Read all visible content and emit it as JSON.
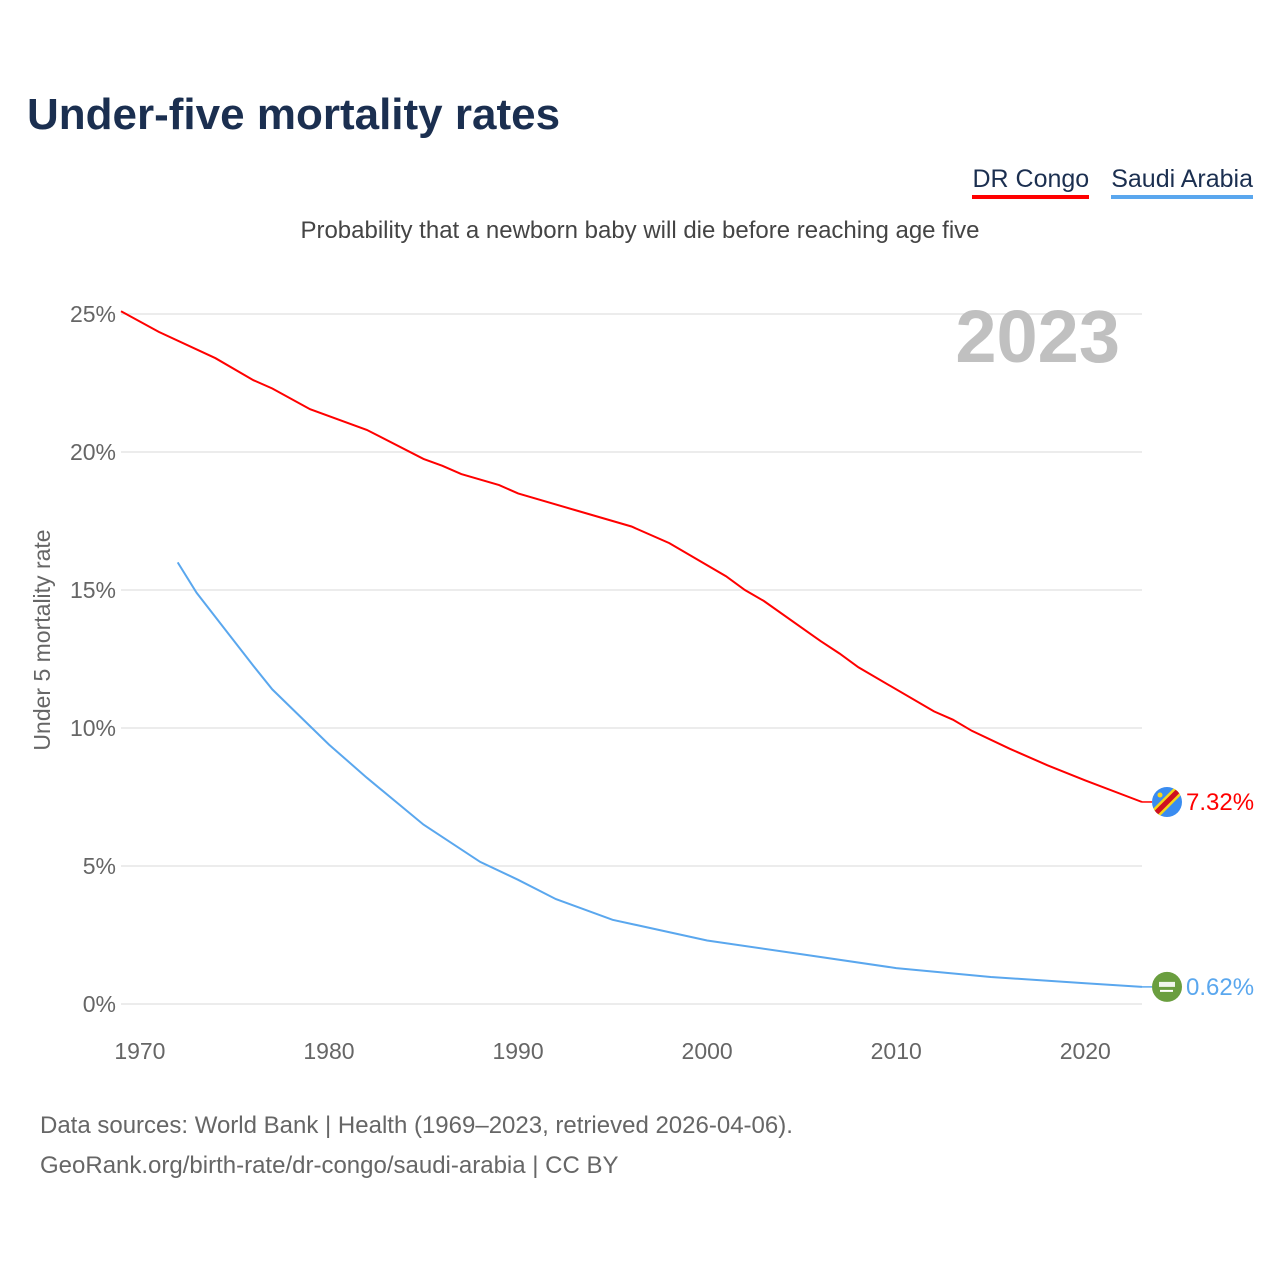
{
  "title": "Under-five mortality rates",
  "subtitle": "Probability that a newborn baby will die before reaching age five",
  "footer": {
    "line1": "Data sources: World Bank | Health (1969–2023, retrieved 2026-04-06).",
    "line2": "GeoRank.org/birth-rate/dr-congo/saudi-arabia | CC BY"
  },
  "chart_data": {
    "type": "line",
    "title": "Under-five mortality rates",
    "xlabel": "",
    "ylabel": "Under 5 mortality rate",
    "xlim": [
      1969,
      2023
    ],
    "ylim": [
      0,
      25
    ],
    "year_label": "2023",
    "grid": true,
    "legend_placement": "top-right",
    "x_ticks": [
      "1970",
      "1980",
      "1990",
      "2000",
      "2010",
      "2020"
    ],
    "x_tick_values": [
      1970,
      1980,
      1990,
      2000,
      2010,
      2020
    ],
    "y_ticks": [
      "0%",
      "5%",
      "10%",
      "15%",
      "20%",
      "25%"
    ],
    "y_tick_values": [
      0,
      5,
      10,
      15,
      20,
      25
    ],
    "series": [
      {
        "name": "DR Congo",
        "color": "#ff0000",
        "end_label": "7.32%",
        "flag": "dr-congo-flag-icon",
        "x": [
          1969,
          1971,
          1974,
          1976,
          1977,
          1979,
          1982,
          1985,
          1986,
          1987,
          1989,
          1990,
          1993,
          1996,
          1998,
          2001,
          2002,
          2003,
          2006,
          2007,
          2008,
          2012,
          2013,
          2014,
          2016,
          2018,
          2020,
          2023
        ],
        "values": [
          25.1,
          24.35,
          23.4,
          22.6,
          22.3,
          21.55,
          20.8,
          19.75,
          19.5,
          19.2,
          18.8,
          18.5,
          17.9,
          17.3,
          16.7,
          15.5,
          15.0,
          14.6,
          13.15,
          12.7,
          12.2,
          10.6,
          10.3,
          9.9,
          9.25,
          8.65,
          8.1,
          7.32
        ]
      },
      {
        "name": "Saudi Arabia",
        "color": "#5aa7ee",
        "end_label": "0.62%",
        "flag": "saudi-arabia-flag-icon",
        "x": [
          1972,
          1973,
          1976,
          1977,
          1980,
          1982,
          1985,
          1988,
          1990,
          1992,
          1995,
          2000,
          2005,
          2010,
          2015,
          2020,
          2023
        ],
        "values": [
          16.0,
          14.9,
          12.25,
          11.4,
          9.4,
          8.2,
          6.5,
          5.15,
          4.5,
          3.8,
          3.05,
          2.3,
          1.8,
          1.3,
          0.98,
          0.75,
          0.62
        ]
      }
    ]
  }
}
